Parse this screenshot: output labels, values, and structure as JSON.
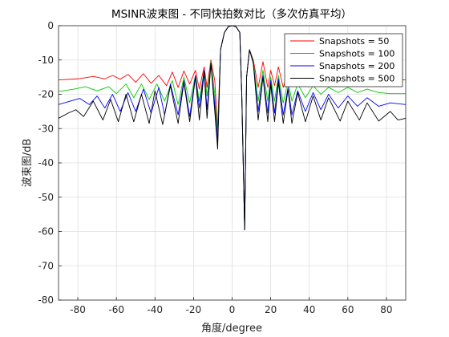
{
  "chart_data": {
    "type": "line",
    "title": "MSINR波束图 - 不同快拍数对比（多次仿真平均）",
    "xlabel": "角度/degree",
    "ylabel": "波束图/dB",
    "xlim": [
      -90,
      90
    ],
    "ylim": [
      -80,
      0
    ],
    "xticks": [
      -80,
      -60,
      -40,
      -20,
      0,
      20,
      40,
      60,
      80
    ],
    "yticks": [
      0,
      -10,
      -20,
      -30,
      -40,
      -50,
      -60,
      -70,
      -80
    ],
    "grid": true,
    "legend_position": "top-right",
    "series": [
      {
        "name": "Snapshots = 50",
        "color": "#ff0000",
        "points": [
          [
            -90,
            -15.8
          ],
          [
            -80,
            -15.5
          ],
          [
            -72,
            -14.8
          ],
          [
            -66,
            -15.5
          ],
          [
            -62,
            -14.5
          ],
          [
            -58,
            -15.6
          ],
          [
            -54,
            -14.2
          ],
          [
            -50,
            -16.5
          ],
          [
            -46,
            -14.0
          ],
          [
            -42,
            -16.8
          ],
          [
            -38,
            -14.5
          ],
          [
            -34,
            -17.5
          ],
          [
            -31,
            -13.5
          ],
          [
            -28,
            -18.0
          ],
          [
            -25,
            -13.2
          ],
          [
            -22,
            -17.0
          ],
          [
            -19,
            -13.0
          ],
          [
            -17,
            -18.5
          ],
          [
            -14.5,
            -12.0
          ],
          [
            -13,
            -18.0
          ],
          [
            -11,
            -10.0
          ],
          [
            -9,
            -16.0
          ],
          [
            -7.5,
            -30
          ],
          [
            -6,
            -7.0
          ],
          [
            -4,
            -2.0
          ],
          [
            -2,
            -0.3
          ],
          [
            0,
            0
          ],
          [
            2,
            -0.3
          ],
          [
            4,
            -2.0
          ],
          [
            5,
            -20.0
          ],
          [
            6.5,
            -59.5
          ],
          [
            7.5,
            -15.0
          ],
          [
            9,
            -7.0
          ],
          [
            11,
            -10.0
          ],
          [
            13.5,
            -18.0
          ],
          [
            16,
            -10.5
          ],
          [
            18.5,
            -18.0
          ],
          [
            20,
            -13.0
          ],
          [
            22,
            -17.5
          ],
          [
            24,
            -12.0
          ],
          [
            26.5,
            -18.0
          ],
          [
            29,
            -13.5
          ],
          [
            31,
            -17.5
          ],
          [
            34,
            -14.0
          ],
          [
            38,
            -16.5
          ],
          [
            42,
            -14.5
          ],
          [
            46,
            -16.0
          ],
          [
            50,
            -14.8
          ],
          [
            55,
            -15.8
          ],
          [
            60,
            -15.0
          ],
          [
            65,
            -16.0
          ],
          [
            70,
            -15.2
          ],
          [
            76,
            -15.9
          ],
          [
            82,
            -15.6
          ],
          [
            90,
            -15.8
          ]
        ]
      },
      {
        "name": "Snapshots = 100",
        "color": "#00cc00",
        "points": [
          [
            -90,
            -19.2
          ],
          [
            -82,
            -18.5
          ],
          [
            -76,
            -17.8
          ],
          [
            -70,
            -19.0
          ],
          [
            -64,
            -17.8
          ],
          [
            -60,
            -19.8
          ],
          [
            -55,
            -17.0
          ],
          [
            -51,
            -21.0
          ],
          [
            -47,
            -17.0
          ],
          [
            -43,
            -21.5
          ],
          [
            -39,
            -17.0
          ],
          [
            -35,
            -22.0
          ],
          [
            -31,
            -16.0
          ],
          [
            -28,
            -23.0
          ],
          [
            -25,
            -15.0
          ],
          [
            -22,
            -22.5
          ],
          [
            -19,
            -14.5
          ],
          [
            -17,
            -22.0
          ],
          [
            -14.5,
            -13.0
          ],
          [
            -13,
            -20.5
          ],
          [
            -11,
            -10.5
          ],
          [
            -9,
            -20.0
          ],
          [
            -7.5,
            -32
          ],
          [
            -6,
            -7.0
          ],
          [
            -4,
            -2.0
          ],
          [
            -2,
            -0.3
          ],
          [
            0,
            0
          ],
          [
            2,
            -0.3
          ],
          [
            4,
            -2.0
          ],
          [
            5,
            -20.0
          ],
          [
            6.5,
            -59.5
          ],
          [
            7.5,
            -15.0
          ],
          [
            9,
            -7.0
          ],
          [
            11,
            -10.5
          ],
          [
            13.5,
            -22.0
          ],
          [
            16,
            -13.0
          ],
          [
            18.5,
            -22.0
          ],
          [
            20,
            -15.0
          ],
          [
            22,
            -22.0
          ],
          [
            24,
            -14.5
          ],
          [
            26.5,
            -22.5
          ],
          [
            29,
            -16.0
          ],
          [
            31,
            -22.0
          ],
          [
            34,
            -17.0
          ],
          [
            38,
            -21.0
          ],
          [
            42,
            -17.5
          ],
          [
            46,
            -20.0
          ],
          [
            50,
            -18.0
          ],
          [
            55,
            -19.5
          ],
          [
            60,
            -18.0
          ],
          [
            65,
            -19.5
          ],
          [
            70,
            -18.5
          ],
          [
            76,
            -19.5
          ],
          [
            82,
            -19.8
          ],
          [
            90,
            -19.8
          ]
        ]
      },
      {
        "name": "Snapshots = 200",
        "color": "#0000ff",
        "points": [
          [
            -90,
            -23.0
          ],
          [
            -84,
            -22.0
          ],
          [
            -79,
            -21.2
          ],
          [
            -74,
            -23.0
          ],
          [
            -70,
            -20.5
          ],
          [
            -66,
            -24.0
          ],
          [
            -62,
            -20.0
          ],
          [
            -58,
            -25.0
          ],
          [
            -54,
            -19.5
          ],
          [
            -50,
            -25.0
          ],
          [
            -46,
            -18.5
          ],
          [
            -42,
            -25.5
          ],
          [
            -38,
            -18.0
          ],
          [
            -35,
            -26.0
          ],
          [
            -32,
            -17.0
          ],
          [
            -28,
            -26.0
          ],
          [
            -25,
            -16.0
          ],
          [
            -22,
            -26.5
          ],
          [
            -19,
            -14.5
          ],
          [
            -17,
            -24.0
          ],
          [
            -14.5,
            -13.0
          ],
          [
            -13,
            -24.5
          ],
          [
            -11,
            -11.0
          ],
          [
            -9,
            -23.0
          ],
          [
            -7.5,
            -34
          ],
          [
            -6,
            -7.0
          ],
          [
            -4,
            -2.0
          ],
          [
            -2,
            -0.3
          ],
          [
            0,
            0
          ],
          [
            2,
            -0.3
          ],
          [
            4,
            -2.0
          ],
          [
            5,
            -20.0
          ],
          [
            6.5,
            -59.5
          ],
          [
            7.5,
            -15.0
          ],
          [
            9,
            -7.0
          ],
          [
            11,
            -11.0
          ],
          [
            13.5,
            -25.0
          ],
          [
            16,
            -14.5
          ],
          [
            18.5,
            -25.5
          ],
          [
            20,
            -16.0
          ],
          [
            22,
            -25.5
          ],
          [
            24,
            -15.5
          ],
          [
            26.5,
            -26.0
          ],
          [
            29,
            -18.0
          ],
          [
            31,
            -26.0
          ],
          [
            34,
            -19.0
          ],
          [
            38,
            -25.0
          ],
          [
            42,
            -19.5
          ],
          [
            46,
            -24.5
          ],
          [
            50,
            -20.0
          ],
          [
            55,
            -24.0
          ],
          [
            60,
            -20.5
          ],
          [
            65,
            -23.5
          ],
          [
            70,
            -21.0
          ],
          [
            76,
            -23.5
          ],
          [
            82,
            -22.5
          ],
          [
            90,
            -23.0
          ]
        ]
      },
      {
        "name": "Snapshots = 500",
        "color": "#000000",
        "points": [
          [
            -90,
            -27.0
          ],
          [
            -85,
            -25.5
          ],
          [
            -81,
            -24.5
          ],
          [
            -77,
            -26.5
          ],
          [
            -72,
            -22.0
          ],
          [
            -67,
            -27.5
          ],
          [
            -63,
            -21.5
          ],
          [
            -59,
            -28.0
          ],
          [
            -55,
            -20.0
          ],
          [
            -51,
            -28.0
          ],
          [
            -47,
            -20.0
          ],
          [
            -43,
            -28.5
          ],
          [
            -40,
            -19.0
          ],
          [
            -36,
            -28.8
          ],
          [
            -32,
            -17.5
          ],
          [
            -28,
            -28.5
          ],
          [
            -25,
            -16.5
          ],
          [
            -22,
            -28.0
          ],
          [
            -19,
            -15.0
          ],
          [
            -17,
            -27.5
          ],
          [
            -14.5,
            -13.5
          ],
          [
            -13,
            -27.0
          ],
          [
            -11,
            -11.0
          ],
          [
            -9,
            -25.0
          ],
          [
            -7.5,
            -36
          ],
          [
            -6,
            -7.0
          ],
          [
            -4,
            -2.0
          ],
          [
            -2,
            -0.3
          ],
          [
            0,
            0
          ],
          [
            2,
            -0.3
          ],
          [
            4,
            -2.0
          ],
          [
            5,
            -20.0
          ],
          [
            6.5,
            -59.5
          ],
          [
            7.5,
            -15.0
          ],
          [
            9,
            -7.0
          ],
          [
            11,
            -11.0
          ],
          [
            13.5,
            -27.5
          ],
          [
            16,
            -15.0
          ],
          [
            18.5,
            -28.0
          ],
          [
            20,
            -17.0
          ],
          [
            22,
            -28.0
          ],
          [
            24,
            -16.5
          ],
          [
            26.5,
            -28.5
          ],
          [
            29,
            -18.5
          ],
          [
            31,
            -28.5
          ],
          [
            34,
            -19.5
          ],
          [
            38,
            -28.0
          ],
          [
            42,
            -20.5
          ],
          [
            46,
            -27.5
          ],
          [
            50,
            -21.0
          ],
          [
            56,
            -27.8
          ],
          [
            60,
            -22.0
          ],
          [
            66,
            -27.5
          ],
          [
            70,
            -22.5
          ],
          [
            76,
            -27.8
          ],
          [
            82,
            -25.0
          ],
          [
            86,
            -27.5
          ],
          [
            90,
            -27.0
          ]
        ]
      }
    ]
  }
}
